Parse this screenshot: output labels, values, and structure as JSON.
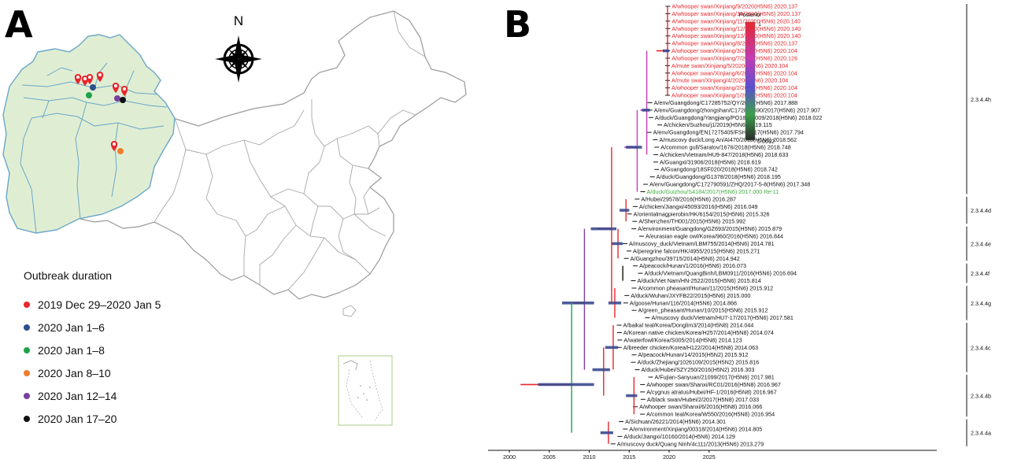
{
  "panels": {
    "a_label": "A",
    "b_label": "B"
  },
  "map": {
    "north_label": "N",
    "legend_title": "Outbreak duration",
    "legend_items": [
      {
        "label": "2019 Dec 29–2020 Jan 5",
        "color": "#e8262c"
      },
      {
        "label": "2020 Jan 1–6",
        "color": "#2b4f8f"
      },
      {
        "label": "2020 Jan 1–8",
        "color": "#1fa34a"
      },
      {
        "label": "2020 Jan 8–10",
        "color": "#ef7d2b"
      },
      {
        "label": "2020 Jan 12–14",
        "color": "#7b3fa0"
      },
      {
        "label": "2020 Jan 17–20",
        "color": "#111111"
      }
    ]
  },
  "tree": {
    "colorbar_title": "Posterior",
    "colorbar_max": "1",
    "colorbar_min": "0.0692",
    "axis_ticks": [
      "2000",
      "2005",
      "2010",
      "2015",
      "2020",
      "2025"
    ],
    "clades": [
      "2.3.4.4h",
      "2.3.4.4d",
      "2.3.4.4e",
      "2.3.4.4f",
      "2.3.4.4g",
      "2.3.4.4c",
      "2.3.4.4b",
      "2.3.4.4a"
    ],
    "taxa": [
      {
        "label": "A/whooper swan/Xinjiang/9/2020(H5N6) 2020.137",
        "color": "red"
      },
      {
        "label": "A/whooper swan/Xinjiang/10/2020(H5N6) 2020.137",
        "color": "red"
      },
      {
        "label": "A/whooper swan/Xinjiang/11/2020(H5N6) 2020.140",
        "color": "red"
      },
      {
        "label": "A/whooper swan/Xinjiang/12/2020(H5N6) 2020.140",
        "color": "red"
      },
      {
        "label": "A/whooper swan/Xinjiang/13/2020(H5N6) 2020.140",
        "color": "red"
      },
      {
        "label": "A/whooper swan/Xinjiang/8/2020(H5N6) 2020.137",
        "color": "red"
      },
      {
        "label": "A/whooper swan/Xinjiang/3/2020(H5N6) 2020.104",
        "color": "red"
      },
      {
        "label": "A/whooper swan/Xinjiang/7/2020(H5N6) 2020.126",
        "color": "red"
      },
      {
        "label": "A/mute swan/Xinjiang/5/2020(H5N6) 2020.104",
        "color": "red"
      },
      {
        "label": "A/whooper swan/Xinjiang/6/2020(H5N6) 2020.104",
        "color": "red"
      },
      {
        "label": "A/mute swan/Xinjiang/4/2020(H5N6) 2020.104",
        "color": "red"
      },
      {
        "label": "A/whooper swan/Xinjiang/2/2020(H5N6) 2020.104",
        "color": "red"
      },
      {
        "label": "A/whooper swan/Xinjiang/1/2020(H5N6) 2020.104",
        "color": "red"
      },
      {
        "label": "A/env/Guangdong/C17285752/QY/2017(H5N6) 2017.888",
        "color": "black"
      },
      {
        "label": "A/env/Guangdong/zhongshan/C172870590/2017(H5N6) 2017.907",
        "color": "black"
      },
      {
        "label": "A/duck/Guangdong/Yangjiang/PO18284009/2018(H5N6) 2018.022",
        "color": "black"
      },
      {
        "label": "A/chicken/Suzhou/j1/2019(H5N6) 2019.115",
        "color": "black"
      },
      {
        "label": "A/env/Guangdong/EN17275405/FSH/2017(H5N6) 2017.794",
        "color": "black"
      },
      {
        "label": "A/muscovy duck/Long An/AI470/2018(H5N6) 2018.562",
        "color": "black"
      },
      {
        "label": "A/common gull/Saratov/1676/2018(H5N6) 2018.748",
        "color": "black"
      },
      {
        "label": "A/chicken/Vietnam/HU9-847/2018(H5N6) 2018.633",
        "color": "black"
      },
      {
        "label": "A/Guangxi/31906/2018(H5N6) 2018.619",
        "color": "black"
      },
      {
        "label": "A/Guangdong/18SF020/2018(H5N6) 2018.742",
        "color": "black"
      },
      {
        "label": "A/duck/Guangdong/G1378/2018(H5N6) 2018.195",
        "color": "black"
      },
      {
        "label": "A/env/Guangdong/C172790591/ZHQ/2017-5-8(H5N6) 2017.348",
        "color": "black"
      },
      {
        "label": "A/duck/Guizhou/S4184/2017(H5N6) 2017.000 Re-11",
        "color": "green"
      },
      {
        "label": "A/Hubei/29578/2016(H5N6) 2016.287",
        "color": "black"
      },
      {
        "label": "A/chicken/Jiangxi/45093/2016(H5N6) 2016.049",
        "color": "black"
      },
      {
        "label": "A/orientalmagpierobin/HK/6154/2015(H5N6) 2015.326",
        "color": "black"
      },
      {
        "label": "A/Shenzhen/TH001/2015(H5N6) 2015.992",
        "color": "black"
      },
      {
        "label": "A/environment/Guangdong/GZ693/2015(H5N6) 2015.879",
        "color": "black"
      },
      {
        "label": "A/eurasian eagle owl/Korea/960/2016(H5N6) 2016.844",
        "color": "black"
      },
      {
        "label": "A/muscovy_duck/Vietnam/LBM755/2014(H5N6) 2014.781",
        "color": "black"
      },
      {
        "label": "A/peregrine falcon/HK/4955/2015(H5N6) 2015.271",
        "color": "black"
      },
      {
        "label": "A/Guangzhou/39715/2014(H5N6) 2014.942",
        "color": "black"
      },
      {
        "label": "A/peacock/Hunan/1/2016(H5N6) 2016.073",
        "color": "black"
      },
      {
        "label": "A/duck/Vietnam/QuangBinh/LBM0911/2016(H5N6) 2016.694",
        "color": "black"
      },
      {
        "label": "A/duck/Viet Nam/HN-2522/2015(H5N6) 2015.814",
        "color": "black"
      },
      {
        "label": "A/common pheasant/Hunan/11/2015(H5N6) 2015.912",
        "color": "black"
      },
      {
        "label": "A/duck/Wuhan/JXYFB22/2015(H5N6) 2015.000",
        "color": "black"
      },
      {
        "label": "A/goose/Hunan/116/2014(H5N6) 2014.866",
        "color": "black"
      },
      {
        "label": "A/green_pheasant/Hunan/10/2015(H5N6) 2015.912",
        "color": "black"
      },
      {
        "label": "A/muscovy duck/Vietnam/HU7-17/2017(H5N6) 2017.581",
        "color": "black"
      },
      {
        "label": "A/baikal teal/Korea/Donglim3/2014(H5N8) 2014.044",
        "color": "black"
      },
      {
        "label": "A/Korean native chicken/Korea/H257/2014(H5N8) 2014.074",
        "color": "black"
      },
      {
        "label": "A/waterfowl/Korea/S005/2014(H5N8) 2014.123",
        "color": "black"
      },
      {
        "label": "A/breeder chicken/Korea/H122/2014(H5N8) 2014.063",
        "color": "black"
      },
      {
        "label": "A/peacock/Hunan/14/2015(H5N2) 2015.912",
        "color": "black"
      },
      {
        "label": "A/duck/Zhejiang/1026109/2015(H5N2) 2015.816",
        "color": "black"
      },
      {
        "label": "A/duck/Hubei/SZY250/2016(H5N2) 2016.303",
        "color": "black"
      },
      {
        "label": "A/Fujian-Sanyuan/21099/2017(H5N6) 2017.981",
        "color": "black"
      },
      {
        "label": "A/whooper swan/Shanxi/RC01/2016(H5N8) 2016.967",
        "color": "black"
      },
      {
        "label": "A/cygnus atratus/Hubei/HF-1/2016(H5N8) 2016.967",
        "color": "black"
      },
      {
        "label": "A/black swan/Hubei/2/2017(H5N8) 2017.033",
        "color": "black"
      },
      {
        "label": "A/whooper swan/Shanxi/6/2016(H5N8) 2016.066",
        "color": "black"
      },
      {
        "label": "A/common teal/Korea/W550/2016(H5N8) 2016.954",
        "color": "black"
      },
      {
        "label": "A/Sichuan/26221/2014(H5N6) 2014.301",
        "color": "black"
      },
      {
        "label": "A/environment/Xinjiang/00318/2014(H5N6) 2014.805",
        "color": "black"
      },
      {
        "label": "A/duck/Jiangxi/10160/2014(H5N6) 2014.129",
        "color": "black"
      },
      {
        "label": "A/muscovy duck/Quang Ninh/4c111/2013(H5N6) 2013.279",
        "color": "black"
      }
    ]
  }
}
